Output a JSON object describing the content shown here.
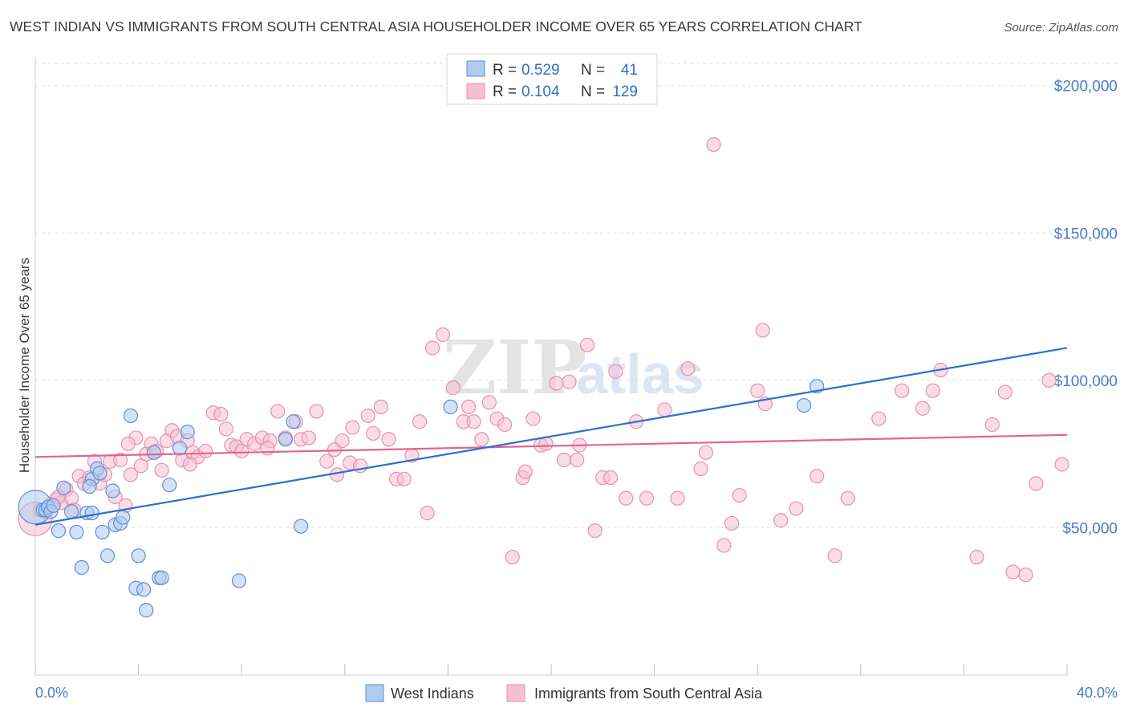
{
  "title": "WEST INDIAN VS IMMIGRANTS FROM SOUTH CENTRAL ASIA HOUSEHOLDER INCOME OVER 65 YEARS CORRELATION CHART",
  "source": "Source: ZipAtlas.com",
  "watermark": {
    "part1": "ZIP",
    "part2": "atlas"
  },
  "colors": {
    "blue_fill": "#aecbf0",
    "blue_stroke": "#5d8fd6",
    "blue_line": "#2e6fd0",
    "pink_fill": "#f6bfd2",
    "pink_stroke": "#e691b1",
    "pink_line": "#e0658f",
    "accent_text": "#4a7cc9"
  },
  "legend": {
    "rows": [
      {
        "r_label": "R =",
        "r_value": "0.529",
        "n_label": "N =",
        "n_value": "41"
      },
      {
        "r_label": "R =",
        "r_value": "0.104",
        "n_label": "N =",
        "n_value": "129"
      }
    ]
  },
  "chart_data": {
    "type": "scatter",
    "title": "WEST INDIAN VS IMMIGRANTS FROM SOUTH CENTRAL ASIA HOUSEHOLDER INCOME OVER 65 YEARS CORRELATION CHART",
    "xlabel": "",
    "ylabel": "Householder Income Over 65 years",
    "xlim": [
      0,
      40
    ],
    "ylim": [
      0,
      210000
    ],
    "x_tick_labels": [
      "0.0%",
      "40.0%"
    ],
    "y_ticks": [
      50000,
      100000,
      150000,
      200000
    ],
    "y_tick_labels": [
      "$50,000",
      "$100,000",
      "$150,000",
      "$200,000"
    ],
    "grid": true,
    "series": [
      {
        "name": "West Indians",
        "color": "blue",
        "r": 0.529,
        "n": 41,
        "trend": {
          "x": [
            0,
            40
          ],
          "y": [
            51000,
            111000
          ]
        },
        "points": [
          {
            "x": 0.0,
            "y": 57000,
            "size": "large"
          },
          {
            "x": 0.3,
            "y": 56000
          },
          {
            "x": 0.4,
            "y": 56000
          },
          {
            "x": 0.5,
            "y": 57000
          },
          {
            "x": 0.6,
            "y": 55500
          },
          {
            "x": 0.7,
            "y": 57500
          },
          {
            "x": 0.9,
            "y": 49000
          },
          {
            "x": 1.1,
            "y": 63500
          },
          {
            "x": 1.4,
            "y": 55500
          },
          {
            "x": 1.6,
            "y": 48500
          },
          {
            "x": 1.8,
            "y": 36500
          },
          {
            "x": 2.0,
            "y": 55000
          },
          {
            "x": 2.2,
            "y": 55000
          },
          {
            "x": 2.2,
            "y": 66500
          },
          {
            "x": 2.4,
            "y": 70000
          },
          {
            "x": 2.5,
            "y": 68500
          },
          {
            "x": 2.6,
            "y": 48500
          },
          {
            "x": 2.8,
            "y": 40500
          },
          {
            "x": 3.0,
            "y": 62500
          },
          {
            "x": 3.1,
            "y": 51000
          },
          {
            "x": 3.3,
            "y": 51500
          },
          {
            "x": 3.4,
            "y": 53500
          },
          {
            "x": 3.7,
            "y": 88000
          },
          {
            "x": 3.9,
            "y": 29500
          },
          {
            "x": 4.0,
            "y": 40500
          },
          {
            "x": 4.2,
            "y": 29000
          },
          {
            "x": 4.3,
            "y": 22000
          },
          {
            "x": 4.6,
            "y": 75500
          },
          {
            "x": 4.8,
            "y": 33000
          },
          {
            "x": 4.9,
            "y": 33000
          },
          {
            "x": 5.2,
            "y": 64500
          },
          {
            "x": 5.6,
            "y": 77000
          },
          {
            "x": 5.9,
            "y": 82500
          },
          {
            "x": 7.9,
            "y": 32000
          },
          {
            "x": 9.7,
            "y": 80000
          },
          {
            "x": 10.0,
            "y": 86000
          },
          {
            "x": 10.3,
            "y": 50500
          },
          {
            "x": 16.1,
            "y": 91000
          },
          {
            "x": 29.8,
            "y": 91500
          },
          {
            "x": 30.3,
            "y": 98000
          },
          {
            "x": 2.1,
            "y": 64000
          }
        ]
      },
      {
        "name": "Immigrants from South Central Asia",
        "color": "pink",
        "r": 0.104,
        "n": 129,
        "trend": {
          "x": [
            0,
            40
          ],
          "y": [
            74000,
            81500
          ]
        },
        "points": [
          {
            "x": 0.0,
            "y": 53000,
            "size": "large"
          },
          {
            "x": 0.2,
            "y": 56000
          },
          {
            "x": 0.4,
            "y": 55500
          },
          {
            "x": 0.6,
            "y": 58000
          },
          {
            "x": 0.8,
            "y": 59500
          },
          {
            "x": 1.0,
            "y": 58500
          },
          {
            "x": 1.2,
            "y": 63000
          },
          {
            "x": 1.4,
            "y": 60000
          },
          {
            "x": 1.7,
            "y": 67500
          },
          {
            "x": 1.9,
            "y": 65000
          },
          {
            "x": 2.1,
            "y": 67000
          },
          {
            "x": 2.3,
            "y": 72500
          },
          {
            "x": 2.5,
            "y": 65000
          },
          {
            "x": 2.7,
            "y": 68000
          },
          {
            "x": 2.9,
            "y": 72500
          },
          {
            "x": 3.1,
            "y": 60500
          },
          {
            "x": 3.3,
            "y": 73000
          },
          {
            "x": 3.5,
            "y": 57500
          },
          {
            "x": 3.7,
            "y": 68000
          },
          {
            "x": 3.9,
            "y": 80500
          },
          {
            "x": 4.1,
            "y": 71000
          },
          {
            "x": 4.3,
            "y": 75000
          },
          {
            "x": 4.5,
            "y": 78500
          },
          {
            "x": 4.7,
            "y": 76000
          },
          {
            "x": 4.9,
            "y": 69500
          },
          {
            "x": 5.1,
            "y": 79500
          },
          {
            "x": 5.3,
            "y": 83000
          },
          {
            "x": 5.5,
            "y": 81000
          },
          {
            "x": 5.7,
            "y": 73000
          },
          {
            "x": 5.9,
            "y": 79500
          },
          {
            "x": 6.1,
            "y": 75500
          },
          {
            "x": 6.3,
            "y": 74000
          },
          {
            "x": 6.6,
            "y": 76000
          },
          {
            "x": 6.9,
            "y": 89000
          },
          {
            "x": 7.2,
            "y": 88500
          },
          {
            "x": 7.4,
            "y": 83500
          },
          {
            "x": 7.6,
            "y": 78000
          },
          {
            "x": 7.8,
            "y": 77500
          },
          {
            "x": 8.0,
            "y": 76000
          },
          {
            "x": 8.2,
            "y": 80000
          },
          {
            "x": 8.5,
            "y": 78500
          },
          {
            "x": 8.8,
            "y": 80500
          },
          {
            "x": 9.1,
            "y": 79500
          },
          {
            "x": 9.4,
            "y": 89500
          },
          {
            "x": 9.7,
            "y": 80500
          },
          {
            "x": 10.1,
            "y": 86000
          },
          {
            "x": 10.3,
            "y": 80000
          },
          {
            "x": 10.6,
            "y": 80500
          },
          {
            "x": 10.9,
            "y": 89500
          },
          {
            "x": 11.3,
            "y": 72500
          },
          {
            "x": 11.6,
            "y": 76500
          },
          {
            "x": 11.9,
            "y": 79500
          },
          {
            "x": 12.2,
            "y": 72000
          },
          {
            "x": 12.6,
            "y": 71000
          },
          {
            "x": 12.9,
            "y": 88000
          },
          {
            "x": 13.1,
            "y": 82000
          },
          {
            "x": 13.4,
            "y": 91000
          },
          {
            "x": 13.7,
            "y": 80000
          },
          {
            "x": 14.0,
            "y": 66500
          },
          {
            "x": 14.3,
            "y": 66500
          },
          {
            "x": 14.6,
            "y": 74500
          },
          {
            "x": 14.9,
            "y": 86000
          },
          {
            "x": 15.2,
            "y": 55000
          },
          {
            "x": 15.4,
            "y": 111000
          },
          {
            "x": 15.8,
            "y": 115500
          },
          {
            "x": 16.2,
            "y": 97500
          },
          {
            "x": 16.6,
            "y": 86000
          },
          {
            "x": 17.0,
            "y": 86000
          },
          {
            "x": 17.3,
            "y": 80000
          },
          {
            "x": 17.6,
            "y": 92500
          },
          {
            "x": 17.9,
            "y": 87000
          },
          {
            "x": 18.2,
            "y": 85000
          },
          {
            "x": 18.5,
            "y": 40000
          },
          {
            "x": 18.9,
            "y": 67000
          },
          {
            "x": 19.0,
            "y": 69000
          },
          {
            "x": 19.3,
            "y": 87000
          },
          {
            "x": 19.6,
            "y": 78000
          },
          {
            "x": 19.8,
            "y": 78500
          },
          {
            "x": 20.2,
            "y": 99000
          },
          {
            "x": 20.5,
            "y": 73000
          },
          {
            "x": 20.7,
            "y": 99500
          },
          {
            "x": 21.0,
            "y": 73000
          },
          {
            "x": 21.1,
            "y": 78000
          },
          {
            "x": 21.4,
            "y": 112000
          },
          {
            "x": 21.7,
            "y": 49000
          },
          {
            "x": 22.0,
            "y": 67000
          },
          {
            "x": 22.3,
            "y": 67000
          },
          {
            "x": 22.5,
            "y": 103000
          },
          {
            "x": 22.9,
            "y": 60000
          },
          {
            "x": 23.3,
            "y": 86000
          },
          {
            "x": 23.7,
            "y": 60000
          },
          {
            "x": 24.4,
            "y": 90000
          },
          {
            "x": 24.9,
            "y": 60000
          },
          {
            "x": 25.3,
            "y": 104000
          },
          {
            "x": 25.8,
            "y": 70000
          },
          {
            "x": 26.0,
            "y": 75500
          },
          {
            "x": 26.3,
            "y": 180000
          },
          {
            "x": 26.7,
            "y": 44000
          },
          {
            "x": 27.0,
            "y": 51500
          },
          {
            "x": 27.3,
            "y": 61000
          },
          {
            "x": 28.0,
            "y": 96500
          },
          {
            "x": 28.2,
            "y": 117000
          },
          {
            "x": 28.3,
            "y": 92000
          },
          {
            "x": 28.9,
            "y": 52500
          },
          {
            "x": 29.5,
            "y": 56500
          },
          {
            "x": 30.3,
            "y": 67500
          },
          {
            "x": 31.0,
            "y": 40500
          },
          {
            "x": 31.5,
            "y": 60000
          },
          {
            "x": 32.7,
            "y": 87000
          },
          {
            "x": 33.6,
            "y": 96500
          },
          {
            "x": 34.4,
            "y": 90500
          },
          {
            "x": 34.8,
            "y": 96500
          },
          {
            "x": 35.1,
            "y": 103500
          },
          {
            "x": 36.5,
            "y": 40000
          },
          {
            "x": 37.1,
            "y": 85000
          },
          {
            "x": 37.6,
            "y": 96000
          },
          {
            "x": 37.9,
            "y": 35000
          },
          {
            "x": 38.4,
            "y": 34000
          },
          {
            "x": 38.8,
            "y": 65000
          },
          {
            "x": 39.3,
            "y": 100000
          },
          {
            "x": 39.8,
            "y": 71500
          },
          {
            "x": 16.8,
            "y": 91000
          },
          {
            "x": 12.3,
            "y": 84000
          },
          {
            "x": 9.0,
            "y": 77000
          },
          {
            "x": 6.0,
            "y": 71500
          },
          {
            "x": 3.6,
            "y": 78500
          },
          {
            "x": 1.5,
            "y": 56000
          },
          {
            "x": 0.9,
            "y": 60500
          },
          {
            "x": 11.7,
            "y": 68000
          }
        ]
      }
    ]
  },
  "bottom_legend": {
    "items": [
      {
        "label": "West Indians",
        "color": "blue"
      },
      {
        "label": "Immigrants from South Central Asia",
        "color": "pink"
      }
    ]
  },
  "axes": {
    "x_min_label": "0.0%",
    "x_max_label": "40.0%",
    "y_label": "Householder Income Over 65 years"
  }
}
